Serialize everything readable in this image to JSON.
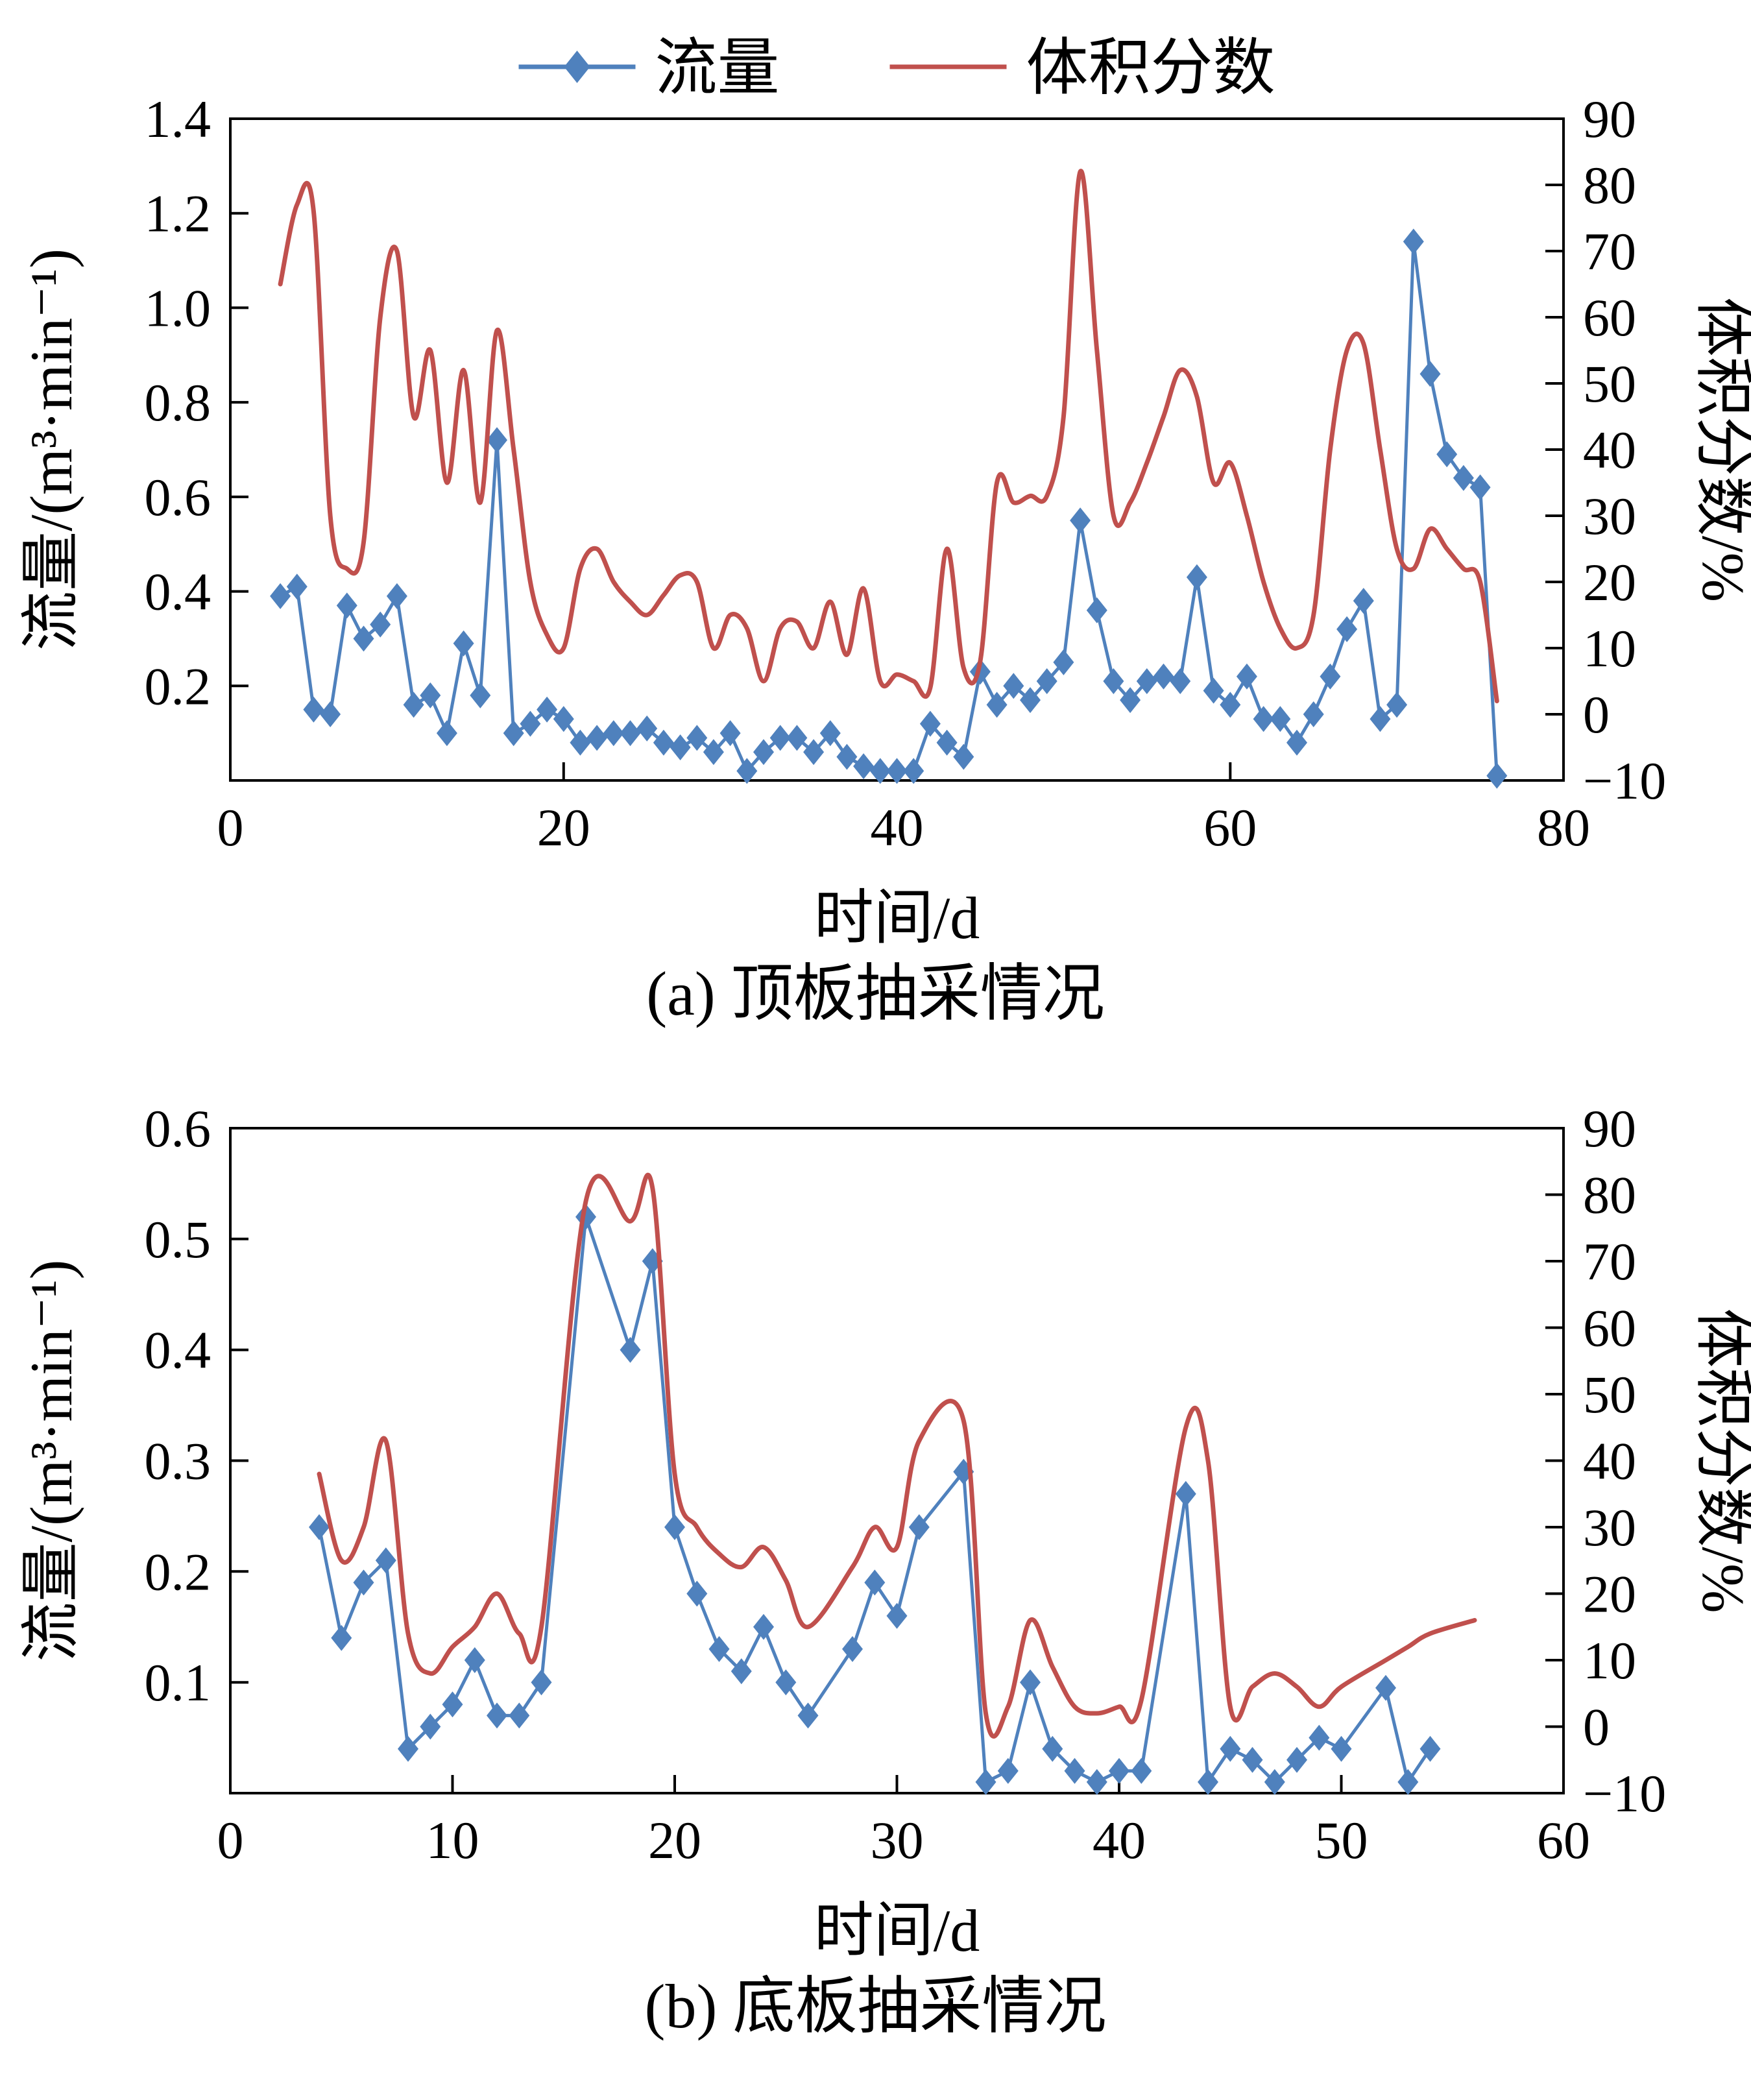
{
  "page": {
    "background": "#ffffff"
  },
  "colors": {
    "flow": "#4f81bd",
    "fraction": "#c0504d",
    "axis": "#000000"
  },
  "legend": {
    "position": "top",
    "labels": [
      "流量",
      "体积分数"
    ]
  },
  "chart_data": [
    {
      "type": "line",
      "caption": "(a) 顶板抽采情况",
      "xlabel": "时间/d",
      "ylabel_left": "流量/(m³·min⁻¹)",
      "ylabel_right": "体积分数/%",
      "xlim": [
        0,
        80
      ],
      "xticks": [
        0,
        20,
        40,
        60,
        80
      ],
      "ylim_left": [
        0,
        1.4
      ],
      "yticks_left": [
        0.2,
        0.4,
        0.6,
        0.8,
        1.0,
        1.2,
        1.4
      ],
      "left_decimals": 1,
      "ylim_right": [
        -10,
        90
      ],
      "yticks_right": [
        -10,
        0,
        10,
        20,
        30,
        40,
        50,
        60,
        70,
        80,
        90
      ],
      "grid": false,
      "show_legend": true,
      "series": [
        {
          "id": "flow",
          "name": "流量",
          "axis": "left",
          "color": "#4f81bd",
          "marker": "diamond",
          "smooth": false,
          "x": {
            "start": 3,
            "step": 1
          },
          "values": [
            0.39,
            0.41,
            0.15,
            0.14,
            0.37,
            0.3,
            0.33,
            0.39,
            0.16,
            0.18,
            0.1,
            0.29,
            0.18,
            0.72,
            0.1,
            0.12,
            0.15,
            0.13,
            0.08,
            0.09,
            0.1,
            0.1,
            0.11,
            0.08,
            0.07,
            0.09,
            0.06,
            0.1,
            0.02,
            0.06,
            0.09,
            0.09,
            0.06,
            0.1,
            0.05,
            0.03,
            0.02,
            0.02,
            0.02,
            0.12,
            0.08,
            0.05,
            0.23,
            0.16,
            0.2,
            0.17,
            0.21,
            0.25,
            0.55,
            0.36,
            0.21,
            0.17,
            0.21,
            0.22,
            0.21,
            0.43,
            0.19,
            0.16,
            0.22,
            0.13,
            0.13,
            0.08,
            0.14,
            0.22,
            0.32,
            0.38,
            0.13,
            0.16,
            1.14,
            0.86,
            0.69,
            0.64,
            0.62,
            0.01
          ]
        },
        {
          "id": "fraction",
          "name": "体积分数",
          "axis": "right",
          "color": "#c0504d",
          "marker": null,
          "smooth": true,
          "x": {
            "start": 3,
            "step": 1
          },
          "values": [
            65,
            77,
            76,
            30,
            22,
            26,
            60,
            70,
            45,
            55,
            35,
            52,
            32,
            58,
            40,
            20,
            12,
            10,
            22,
            25,
            20,
            17,
            15,
            18,
            21,
            20,
            10,
            15,
            13,
            5,
            13,
            14,
            10,
            17,
            9,
            19,
            5,
            6,
            5,
            4,
            25,
            7,
            8,
            35,
            32,
            33,
            33,
            45,
            82,
            55,
            30,
            32,
            38,
            45,
            52,
            48,
            35,
            38,
            30,
            20,
            13,
            10,
            15,
            40,
            55,
            56,
            40,
            25,
            22,
            28,
            25,
            22,
            20,
            2
          ]
        }
      ]
    },
    {
      "type": "line",
      "caption": "(b) 底板抽采情况",
      "xlabel": "时间/d",
      "ylabel_left": "流量/(m³·min⁻¹)",
      "ylabel_right": "体积分数/%",
      "xlim": [
        0,
        60
      ],
      "xticks": [
        0,
        10,
        20,
        30,
        40,
        50,
        60
      ],
      "ylim_left": [
        0,
        0.6
      ],
      "yticks_left": [
        0.1,
        0.2,
        0.3,
        0.4,
        0.5,
        0.6
      ],
      "left_decimals": 1,
      "ylim_right": [
        -10,
        90
      ],
      "yticks_right": [
        -10,
        0,
        10,
        20,
        30,
        40,
        50,
        60,
        70,
        80,
        90
      ],
      "grid": false,
      "show_legend": false,
      "series": [
        {
          "id": "flow",
          "name": "流量",
          "axis": "left",
          "color": "#4f81bd",
          "marker": "diamond",
          "smooth": false,
          "x": [
            4,
            5,
            6,
            7,
            8,
            9,
            10,
            11,
            12,
            13,
            14,
            16,
            18,
            19,
            20,
            21,
            22,
            23,
            24,
            25,
            26,
            28,
            29,
            30,
            31,
            33,
            34,
            35,
            36,
            37,
            38,
            39,
            40,
            41,
            43,
            44,
            45,
            46,
            47,
            48,
            49,
            50,
            52,
            53,
            54
          ],
          "values": [
            0.24,
            0.14,
            0.19,
            0.21,
            0.04,
            0.06,
            0.08,
            0.12,
            0.07,
            0.07,
            0.1,
            0.52,
            0.4,
            0.48,
            0.24,
            0.18,
            0.13,
            0.11,
            0.15,
            0.1,
            0.07,
            0.13,
            0.19,
            0.16,
            0.24,
            0.29,
            0.01,
            0.02,
            0.1,
            0.04,
            0.02,
            0.01,
            0.02,
            0.02,
            0.27,
            0.01,
            0.04,
            0.03,
            0.01,
            0.03,
            0.05,
            0.04,
            0.095,
            0.01,
            0.04
          ]
        },
        {
          "id": "fraction",
          "name": "体积分数",
          "axis": "right",
          "color": "#c0504d",
          "marker": null,
          "smooth": true,
          "x": [
            4,
            5,
            6,
            7,
            8,
            9,
            10,
            11,
            12,
            13,
            14,
            16,
            18,
            19,
            20,
            21,
            22,
            23,
            24,
            25,
            26,
            28,
            29,
            30,
            31,
            33,
            34,
            35,
            36,
            37,
            38,
            39,
            40,
            41,
            43,
            44,
            45,
            46,
            47,
            48,
            49,
            50,
            52,
            53,
            54,
            56
          ],
          "values": [
            38,
            25,
            30,
            43,
            14,
            8,
            12,
            15,
            20,
            14,
            15,
            79,
            76,
            81,
            38,
            30,
            26,
            24,
            27,
            22,
            15,
            24,
            30,
            27,
            43,
            46,
            2,
            3,
            16,
            9,
            3,
            2,
            3,
            4,
            45,
            40,
            3,
            6,
            8,
            6,
            3,
            6,
            10,
            12,
            14,
            16
          ]
        }
      ]
    }
  ]
}
